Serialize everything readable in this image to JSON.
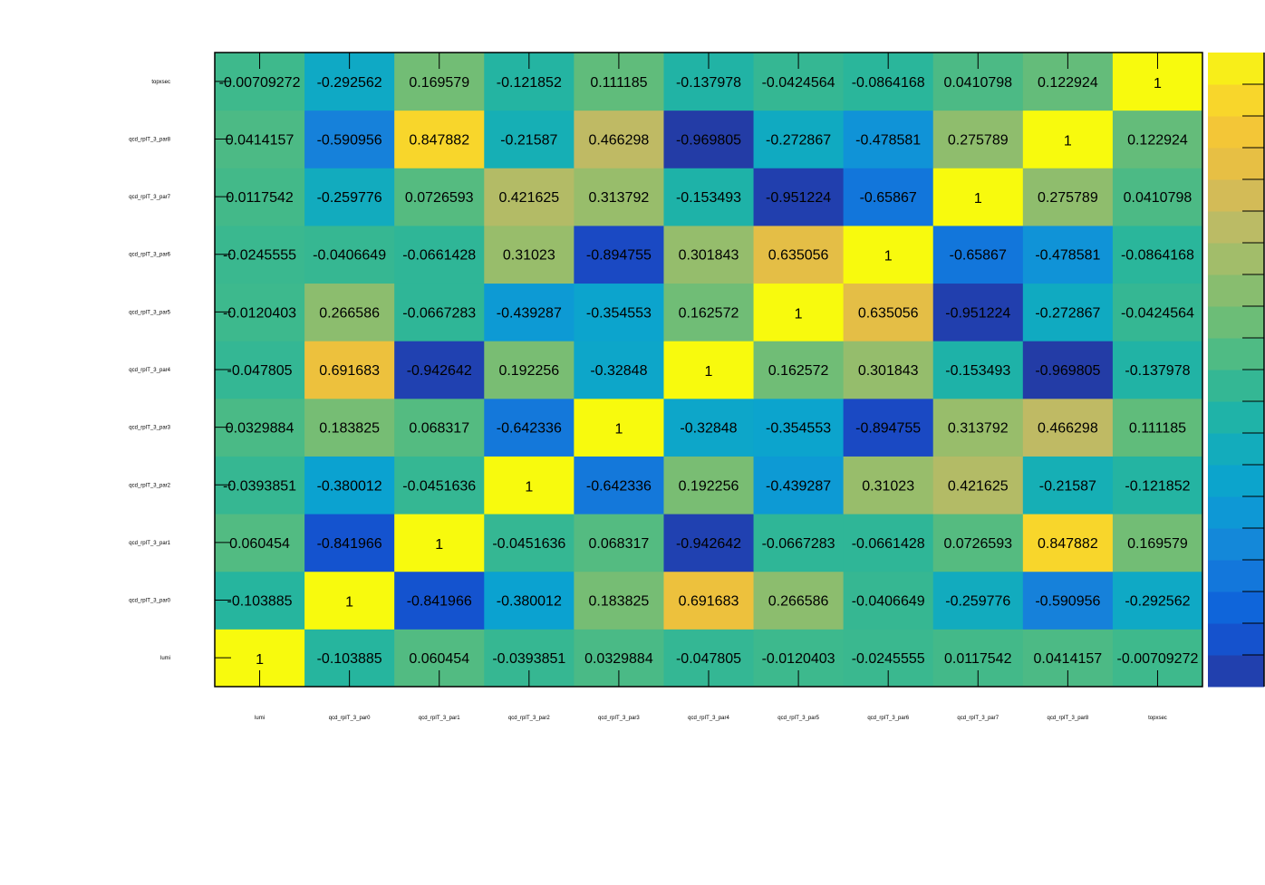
{
  "chart_data": {
    "type": "heatmap",
    "title": "",
    "xlabel": "",
    "ylabel": "",
    "x_categories": [
      "lumi",
      "qcd_rpIT_3_par0",
      "qcd_rpIT_3_par1",
      "qcd_rpIT_3_par2",
      "qcd_rpIT_3_par3",
      "qcd_rpIT_3_par4",
      "qcd_rpIT_3_par5",
      "qcd_rpIT_3_par6",
      "qcd_rpIT_3_par7",
      "qcd_rpIT_3_par8",
      "topxsec"
    ],
    "y_categories": [
      "lumi",
      "qcd_rpIT_3_par0",
      "qcd_rpIT_3_par1",
      "qcd_rpIT_3_par2",
      "qcd_rpIT_3_par3",
      "qcd_rpIT_3_par4",
      "qcd_rpIT_3_par5",
      "qcd_rpIT_3_par6",
      "qcd_rpIT_3_par7",
      "qcd_rpIT_3_par8",
      "topxsec"
    ],
    "y_order": "bottom-to-top",
    "values": [
      [
        "1",
        "-0.103885",
        "0.060454",
        "-0.0393851",
        "0.0329884",
        "-0.047805",
        "-0.0120403",
        "-0.0245555",
        "0.0117542",
        "0.0414157",
        "-0.00709272"
      ],
      [
        "-0.103885",
        "1",
        "-0.841966",
        "-0.380012",
        "0.183825",
        "0.691683",
        "0.266586",
        "-0.0406649",
        "-0.259776",
        "-0.590956",
        "-0.292562"
      ],
      [
        "0.060454",
        "-0.841966",
        "1",
        "-0.0451636",
        "0.068317",
        "-0.942642",
        "-0.0667283",
        "-0.0661428",
        "0.0726593",
        "0.847882",
        "0.169579"
      ],
      [
        "-0.0393851",
        "-0.380012",
        "-0.0451636",
        "1",
        "-0.642336",
        "0.192256",
        "-0.439287",
        "0.31023",
        "0.421625",
        "-0.21587",
        "-0.121852"
      ],
      [
        "0.0329884",
        "0.183825",
        "0.068317",
        "-0.642336",
        "1",
        "-0.32848",
        "-0.354553",
        "-0.894755",
        "0.313792",
        "0.466298",
        "0.111185"
      ],
      [
        "-0.047805",
        "0.691683",
        "-0.942642",
        "0.192256",
        "-0.32848",
        "1",
        "0.162572",
        "0.301843",
        "-0.153493",
        "-0.969805",
        "-0.137978"
      ],
      [
        "-0.0120403",
        "0.266586",
        "-0.0667283",
        "-0.439287",
        "-0.354553",
        "0.162572",
        "1",
        "0.635056",
        "-0.951224",
        "-0.272867",
        "-0.0424564"
      ],
      [
        "-0.0245555",
        "-0.0406649",
        "-0.0661428",
        "0.31023",
        "-0.894755",
        "0.301843",
        "0.635056",
        "1",
        "-0.65867",
        "-0.478581",
        "-0.0864168"
      ],
      [
        "0.0117542",
        "-0.259776",
        "0.0726593",
        "0.421625",
        "0.313792",
        "-0.153493",
        "-0.951224",
        "-0.65867",
        "1",
        "0.275789",
        "0.0410798"
      ],
      [
        "0.0414157",
        "-0.590956",
        "0.847882",
        "-0.21587",
        "0.466298",
        "-0.969805",
        "-0.272867",
        "-0.478581",
        "0.275789",
        "1",
        "0.122924"
      ],
      [
        "-0.00709272",
        "-0.292562",
        "0.169579",
        "-0.121852",
        "0.111185",
        "-0.137978",
        "-0.0424564",
        "-0.0864168",
        "0.0410798",
        "0.122924",
        "1"
      ]
    ],
    "zlim": [
      -1,
      1
    ],
    "colorbar": {
      "position": "right",
      "levels": 20,
      "palette": [
        "#27379a",
        "#1b48c2",
        "#0f5bd8",
        "#0f6fdb",
        "#177fda",
        "#1190d8",
        "#0aa0d2",
        "#0ea8c6",
        "#17b0b2",
        "#27b59d",
        "#40b98b",
        "#5dbc7c",
        "#7bbd72",
        "#95bd6c",
        "#aebc67",
        "#c7b962",
        "#dfbd4c",
        "#eec13c",
        "#f8cb31",
        "#f8e125",
        "#f8fa0d"
      ]
    },
    "grid": false,
    "legend": "none"
  }
}
